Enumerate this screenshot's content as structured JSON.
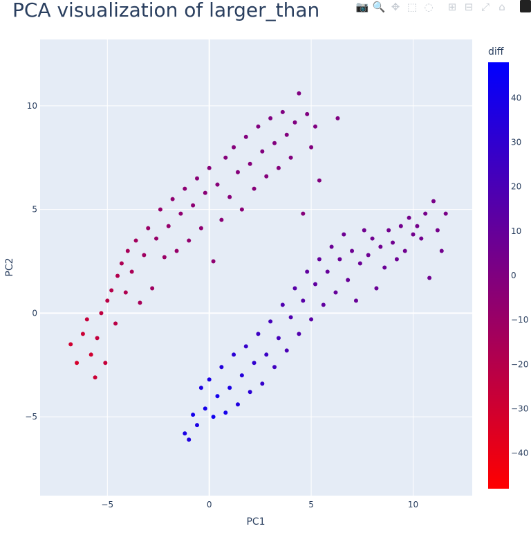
{
  "title": "PCA visualization of larger_than",
  "modebar": [
    {
      "name": "camera-icon",
      "glyph": "📷"
    },
    {
      "name": "zoom-icon",
      "glyph": "🔍"
    },
    {
      "name": "pan-icon",
      "glyph": "✥"
    },
    {
      "name": "box-select-icon",
      "glyph": "⬚"
    },
    {
      "name": "lasso-select-icon",
      "glyph": "◌"
    },
    {
      "name": "zoom-in-icon",
      "glyph": "⊞"
    },
    {
      "name": "zoom-out-icon",
      "glyph": "⊟"
    },
    {
      "name": "autoscale-icon",
      "glyph": "⤢"
    },
    {
      "name": "home-icon",
      "glyph": "⌂"
    }
  ],
  "chart_data": {
    "type": "scatter",
    "title": "PCA visualization of larger_than",
    "xlabel": "PC1",
    "ylabel": "PC2",
    "xlim": [
      -8.3,
      12.9
    ],
    "ylim": [
      -8.8,
      13.2
    ],
    "xticks": [
      -5,
      0,
      5,
      10
    ],
    "xtick_labels": [
      "−5",
      "0",
      "5",
      "10"
    ],
    "yticks": [
      -5,
      0,
      5,
      10
    ],
    "ytick_labels": [
      "−5",
      "0",
      "5",
      "10"
    ],
    "grid": true,
    "colorbar": {
      "title": "diff",
      "range": [
        -48,
        48
      ],
      "ticks": [
        40,
        30,
        20,
        10,
        0,
        -10,
        -20,
        -30,
        -40
      ],
      "tick_labels": [
        "40",
        "30",
        "20",
        "10",
        "0",
        "−10",
        "−20",
        "−30",
        "−40"
      ],
      "colorscale": [
        "#ff0000",
        "#0000ff"
      ]
    },
    "clusters": [
      {
        "description": "upper-left band",
        "points": [
          [
            -6.8,
            -1.5,
            -30
          ],
          [
            -6.5,
            -2.4,
            -32
          ],
          [
            -6.2,
            -1.0,
            -28
          ],
          [
            -6.0,
            -0.3,
            -26
          ],
          [
            -5.8,
            -2.0,
            -30
          ],
          [
            -5.6,
            -3.1,
            -28
          ],
          [
            -5.5,
            -1.2,
            -25
          ],
          [
            -5.3,
            0.0,
            -24
          ],
          [
            -5.1,
            -2.4,
            -26
          ],
          [
            -5.0,
            0.6,
            -22
          ],
          [
            -4.8,
            1.1,
            -20
          ],
          [
            -4.6,
            -0.5,
            -22
          ],
          [
            -4.5,
            1.8,
            -19
          ],
          [
            -4.3,
            2.4,
            -17
          ],
          [
            -4.1,
            1.0,
            -18
          ],
          [
            -4.0,
            3.0,
            -15
          ],
          [
            -3.8,
            2.0,
            -16
          ],
          [
            -3.6,
            3.5,
            -13
          ],
          [
            -3.4,
            0.5,
            -15
          ],
          [
            -3.2,
            2.8,
            -12
          ],
          [
            -3.0,
            4.1,
            -10
          ],
          [
            -2.8,
            1.2,
            -12
          ],
          [
            -2.6,
            3.6,
            -9
          ],
          [
            -2.4,
            5.0,
            -8
          ],
          [
            -2.2,
            2.7,
            -10
          ],
          [
            -2.0,
            4.2,
            -8
          ],
          [
            -1.8,
            5.5,
            -6
          ],
          [
            -1.6,
            3.0,
            -9
          ],
          [
            -1.4,
            4.8,
            -6
          ],
          [
            -1.2,
            6.0,
            -5
          ],
          [
            -1.0,
            3.5,
            -7
          ],
          [
            -0.8,
            5.2,
            -5
          ],
          [
            -0.6,
            6.5,
            -4
          ],
          [
            -0.4,
            4.1,
            -6
          ],
          [
            -0.2,
            5.8,
            -4
          ],
          [
            0.0,
            7.0,
            -3
          ],
          [
            0.2,
            2.5,
            -6
          ],
          [
            0.4,
            6.2,
            -3
          ],
          [
            0.6,
            4.5,
            -4
          ],
          [
            0.8,
            7.5,
            -2
          ],
          [
            1.0,
            5.6,
            -3
          ],
          [
            1.2,
            8.0,
            -2
          ],
          [
            1.4,
            6.8,
            -2
          ],
          [
            1.6,
            5.0,
            -4
          ],
          [
            1.8,
            8.5,
            -1
          ],
          [
            2.0,
            7.2,
            -2
          ],
          [
            2.2,
            6.0,
            -3
          ],
          [
            2.4,
            9.0,
            -1
          ],
          [
            2.6,
            7.8,
            -1
          ],
          [
            2.8,
            6.6,
            -2
          ],
          [
            3.0,
            9.4,
            0
          ],
          [
            3.2,
            8.2,
            -1
          ],
          [
            3.4,
            7.0,
            -2
          ],
          [
            3.6,
            9.7,
            0
          ],
          [
            3.8,
            8.6,
            -1
          ],
          [
            4.0,
            7.5,
            -1
          ],
          [
            4.2,
            9.2,
            0
          ],
          [
            4.4,
            10.6,
            0
          ],
          [
            4.6,
            4.8,
            -2
          ],
          [
            4.8,
            9.6,
            0
          ],
          [
            5.0,
            8.0,
            -1
          ],
          [
            5.2,
            9.0,
            0
          ],
          [
            5.4,
            6.4,
            -1
          ],
          [
            6.3,
            9.4,
            0
          ]
        ]
      },
      {
        "description": "lower-right band",
        "points": [
          [
            -1.2,
            -5.8,
            38
          ],
          [
            -1.0,
            -6.1,
            36
          ],
          [
            -0.8,
            -4.9,
            40
          ],
          [
            -0.6,
            -5.4,
            38
          ],
          [
            -0.4,
            -3.6,
            37
          ],
          [
            -0.2,
            -4.6,
            40
          ],
          [
            0.0,
            -3.2,
            38
          ],
          [
            0.2,
            -5.0,
            42
          ],
          [
            0.4,
            -4.0,
            41
          ],
          [
            0.6,
            -2.6,
            35
          ],
          [
            0.8,
            -4.8,
            40
          ],
          [
            1.0,
            -3.6,
            38
          ],
          [
            1.2,
            -2.0,
            32
          ],
          [
            1.4,
            -4.4,
            36
          ],
          [
            1.6,
            -3.0,
            34
          ],
          [
            1.8,
            -1.6,
            28
          ],
          [
            2.0,
            -3.8,
            32
          ],
          [
            2.2,
            -2.4,
            30
          ],
          [
            2.4,
            -1.0,
            25
          ],
          [
            2.6,
            -3.4,
            28
          ],
          [
            2.8,
            -2.0,
            26
          ],
          [
            3.0,
            -0.4,
            22
          ],
          [
            3.2,
            -2.6,
            24
          ],
          [
            3.4,
            -1.2,
            22
          ],
          [
            3.6,
            0.4,
            18
          ],
          [
            3.8,
            -1.8,
            20
          ],
          [
            4.0,
            -0.2,
            18
          ],
          [
            4.2,
            1.2,
            15
          ],
          [
            4.4,
            -1.0,
            17
          ],
          [
            4.6,
            0.6,
            15
          ],
          [
            4.8,
            2.0,
            12
          ],
          [
            5.0,
            -0.3,
            14
          ],
          [
            5.2,
            1.4,
            12
          ],
          [
            5.4,
            2.6,
            10
          ],
          [
            5.6,
            0.4,
            12
          ],
          [
            5.8,
            2.0,
            10
          ],
          [
            6.0,
            3.2,
            8
          ],
          [
            6.2,
            1.0,
            10
          ],
          [
            6.4,
            2.6,
            8
          ],
          [
            6.6,
            3.8,
            7
          ],
          [
            6.8,
            1.6,
            9
          ],
          [
            7.0,
            3.0,
            7
          ],
          [
            7.2,
            0.6,
            9
          ],
          [
            7.4,
            2.4,
            8
          ],
          [
            7.6,
            4.0,
            6
          ],
          [
            7.8,
            2.8,
            7
          ],
          [
            8.0,
            3.6,
            6
          ],
          [
            8.2,
            1.2,
            8
          ],
          [
            8.4,
            3.2,
            6
          ],
          [
            8.6,
            2.2,
            8
          ],
          [
            8.8,
            4.0,
            5
          ],
          [
            9.0,
            3.4,
            6
          ],
          [
            9.2,
            2.6,
            7
          ],
          [
            9.4,
            4.2,
            5
          ],
          [
            9.6,
            3.0,
            6
          ],
          [
            9.8,
            4.6,
            4
          ],
          [
            10.0,
            3.8,
            5
          ],
          [
            10.2,
            4.2,
            4
          ],
          [
            10.4,
            3.6,
            5
          ],
          [
            10.6,
            4.8,
            4
          ],
          [
            10.8,
            1.7,
            6
          ],
          [
            11.0,
            5.4,
            3
          ],
          [
            11.2,
            4.0,
            4
          ],
          [
            11.4,
            3.0,
            5
          ],
          [
            11.6,
            4.8,
            3
          ]
        ]
      }
    ]
  }
}
